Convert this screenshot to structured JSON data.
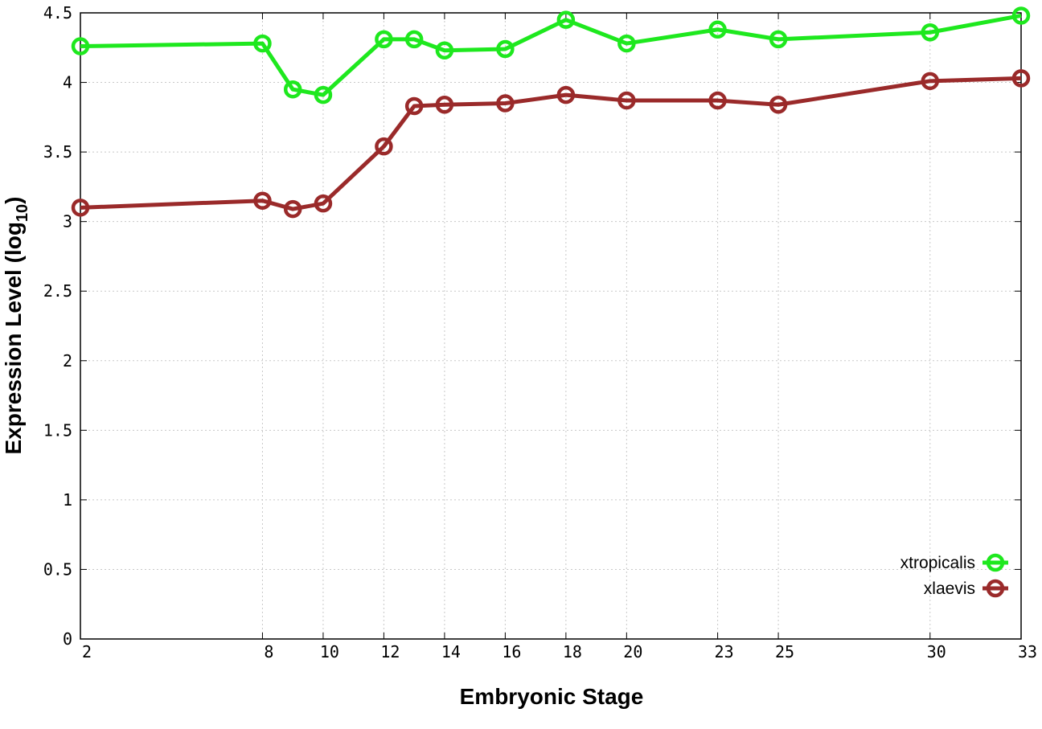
{
  "chart_data": {
    "type": "line",
    "x": [
      2,
      8,
      9,
      10,
      12,
      13,
      14,
      16,
      18,
      20,
      23,
      25,
      30,
      33
    ],
    "xticks": [
      "2",
      "8",
      "10",
      "12",
      "14",
      "16",
      "18",
      "20",
      "23",
      "25",
      "30",
      "33"
    ],
    "xtick_values": [
      2,
      8,
      10,
      12,
      14,
      16,
      18,
      20,
      23,
      25,
      30,
      33
    ],
    "yticks": [
      "0",
      "0.5",
      "1",
      "1.5",
      "2",
      "2.5",
      "3",
      "3.5",
      "4",
      "4.5"
    ],
    "ytick_values": [
      0,
      0.5,
      1,
      1.5,
      2,
      2.5,
      3,
      3.5,
      4,
      4.5
    ],
    "xlim": [
      2,
      33
    ],
    "ylim": [
      0,
      4.5
    ],
    "xlabel": "Embryonic Stage",
    "ylabel": "Expression Level (log",
    "ylabel_subscript": "10",
    "ylabel_suffix": ")",
    "grid": true,
    "legend_position": "bottom-right",
    "series": [
      {
        "name": "xtropicalis",
        "color": "#1ee81e",
        "values": [
          4.26,
          4.28,
          3.95,
          3.91,
          4.31,
          4.31,
          4.23,
          4.24,
          4.45,
          4.28,
          4.38,
          4.31,
          4.36,
          4.48
        ]
      },
      {
        "name": "xlaevis",
        "color": "#9a2a2a",
        "values": [
          3.1,
          3.15,
          3.09,
          3.13,
          3.54,
          3.83,
          3.84,
          3.85,
          3.91,
          3.87,
          3.87,
          3.84,
          4.01,
          4.03
        ]
      }
    ]
  }
}
